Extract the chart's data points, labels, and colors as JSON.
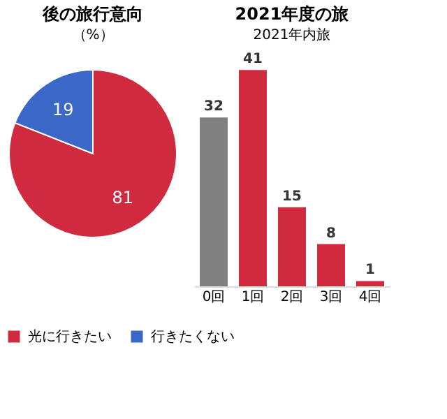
{
  "chart_data": [
    {
      "type": "pie",
      "title": "後の旅行意向",
      "subtitle": "（%）",
      "categories": [
        "光に行きたい",
        "行きたくない"
      ],
      "values": [
        81,
        19
      ],
      "colors": [
        "#cf2a3d",
        "#3a67c8"
      ],
      "data_labels": true,
      "legend": "bottom"
    },
    {
      "type": "bar",
      "title": "2021年度の旅",
      "subtitle": "2021年内旅",
      "categories": [
        "0回",
        "1回",
        "2回",
        "3回",
        "4回"
      ],
      "values": [
        32,
        41,
        15,
        8,
        1
      ],
      "colors": [
        "#808080",
        "#cf2a3d",
        "#cf2a3d",
        "#cf2a3d",
        "#cf2a3d"
      ],
      "data_labels": true,
      "tick_labels": "x"
    }
  ]
}
